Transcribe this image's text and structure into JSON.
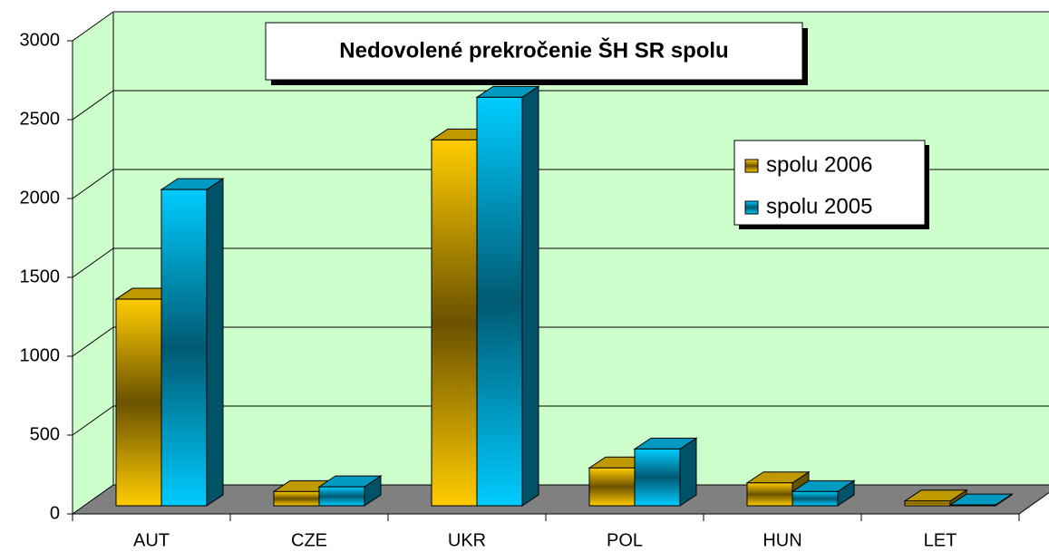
{
  "chart_data": {
    "type": "bar3d",
    "title": "Nedovolené prekročenie ŠH SR spolu",
    "categories": [
      "AUT",
      "CZE",
      "UKR",
      "POL",
      "HUN",
      "LET"
    ],
    "series": [
      {
        "name": "spolu 2006",
        "color": "#ffcc00",
        "values": [
          1310,
          90,
          2320,
          240,
          145,
          30
        ]
      },
      {
        "name": "spolu 2005",
        "color": "#00ccff",
        "values": [
          2005,
          120,
          2590,
          360,
          90,
          5
        ]
      }
    ],
    "ylim": [
      0,
      3000
    ],
    "yticks": [
      0,
      500,
      1000,
      1500,
      2000,
      2500,
      3000
    ],
    "grid": true,
    "legend": "right"
  }
}
